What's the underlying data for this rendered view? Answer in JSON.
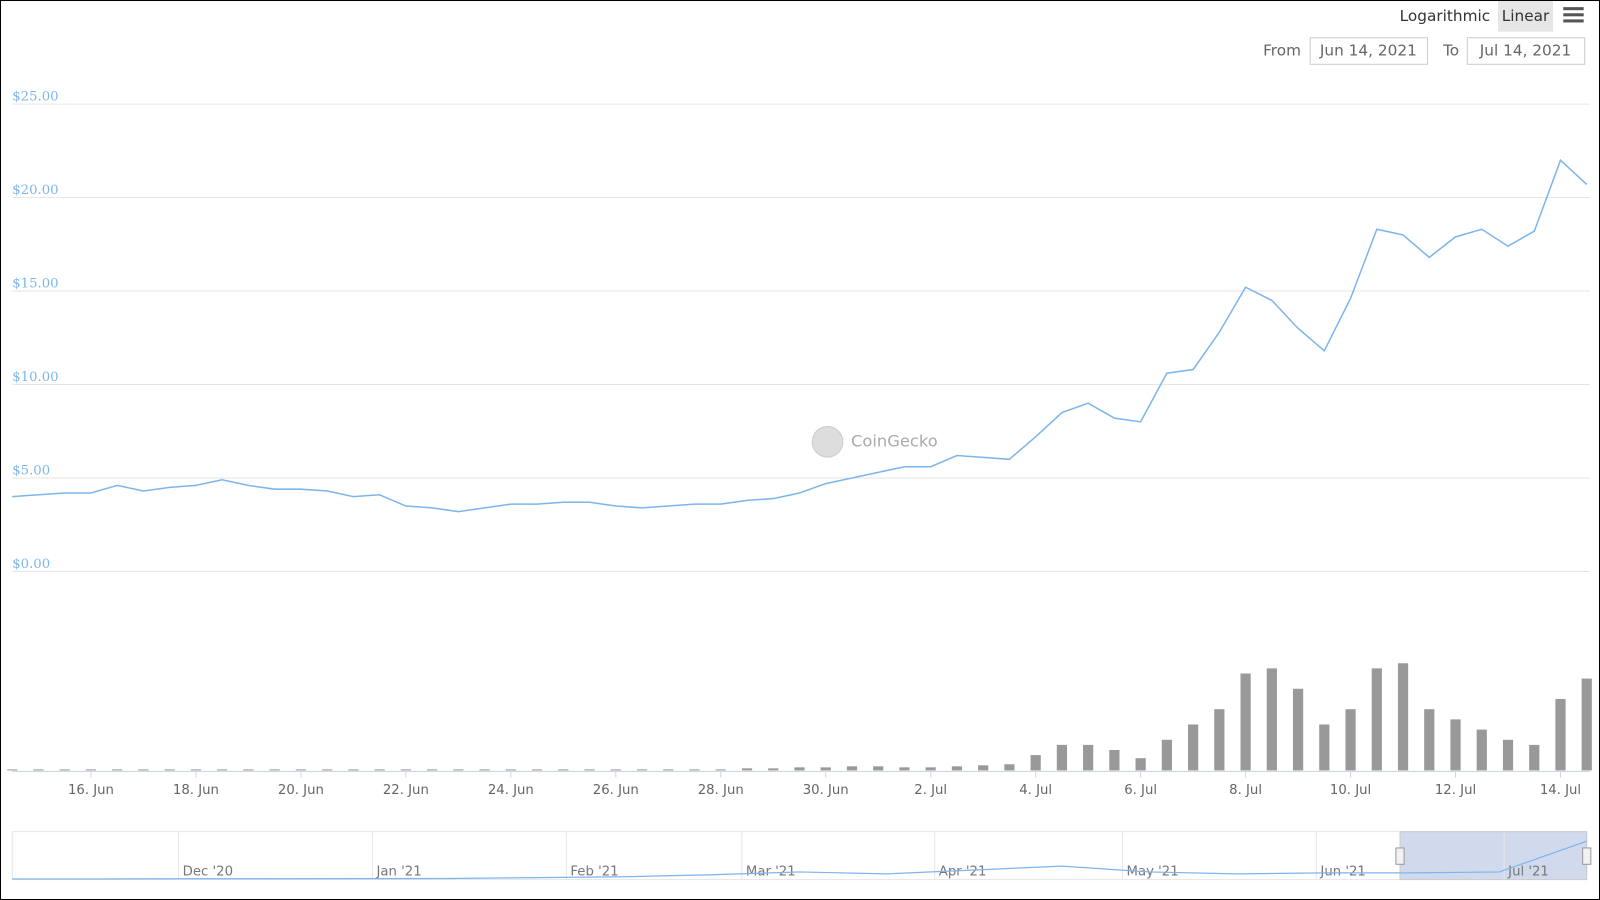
{
  "ui": {
    "log_button": "Logarithmic",
    "linear_button": "Linear",
    "from_label": "From",
    "from_date": "Jun 14, 2021",
    "to_label": "To",
    "to_date": "Jul 14, 2021",
    "watermark": "CoinGecko"
  },
  "chart_data": {
    "type": "line",
    "color": "#7cb5ec",
    "grid": true,
    "categories": [
      null,
      null,
      null,
      "16. Jun",
      null,
      null,
      null,
      "18. Jun",
      null,
      null,
      null,
      "20. Jun",
      null,
      null,
      null,
      "22. Jun",
      null,
      null,
      null,
      "24. Jun",
      null,
      null,
      null,
      "26. Jun",
      null,
      null,
      null,
      "28. Jun",
      null,
      null,
      null,
      "30. Jun",
      null,
      null,
      null,
      "2. Jul",
      null,
      null,
      null,
      "4. Jul",
      null,
      null,
      null,
      "6. Jul",
      null,
      null,
      null,
      "8. Jul",
      null,
      null,
      null,
      "10. Jul",
      null,
      null,
      null,
      "12. Jul",
      null,
      null,
      null,
      "14. Jul",
      null
    ],
    "values": [
      4.0,
      4.1,
      4.2,
      4.2,
      4.6,
      4.3,
      4.5,
      4.6,
      4.9,
      4.6,
      4.4,
      4.4,
      4.3,
      4.0,
      4.1,
      3.5,
      3.4,
      3.2,
      3.4,
      3.6,
      3.6,
      3.7,
      3.7,
      3.5,
      3.4,
      3.5,
      3.6,
      3.6,
      3.8,
      3.9,
      4.2,
      4.7,
      5.0,
      5.3,
      5.6,
      5.6,
      6.2,
      6.1,
      6.0,
      7.2,
      8.5,
      9.0,
      8.2,
      8.0,
      10.6,
      10.8,
      12.8,
      15.2,
      14.5,
      13.0,
      11.8,
      14.6,
      18.3,
      18.0,
      16.8,
      17.9,
      18.3,
      17.4,
      18.2,
      22.0,
      20.7
    ],
    "volume": [
      1,
      1,
      1,
      1,
      1,
      1,
      1,
      1,
      1,
      1,
      1,
      1,
      1,
      1,
      1,
      1,
      1,
      1,
      1,
      1,
      1,
      1,
      1,
      1,
      1,
      1,
      1,
      1,
      2,
      2,
      3,
      3,
      4,
      4,
      3,
      3,
      4,
      5,
      6,
      15,
      25,
      25,
      20,
      12,
      30,
      45,
      60,
      95,
      100,
      80,
      45,
      60,
      100,
      105,
      60,
      50,
      40,
      30,
      25,
      70,
      90
    ],
    "volume_color": "#999999",
    "vlim": [
      0,
      120
    ],
    "ylim": [
      0,
      25
    ],
    "yticks": [
      {
        "value": 0,
        "label": "$0.00"
      },
      {
        "value": 5,
        "label": "$5.00"
      },
      {
        "value": 10,
        "label": "$10.00"
      },
      {
        "value": 15,
        "label": "$15.00"
      },
      {
        "value": 20,
        "label": "$20.00"
      },
      {
        "value": 25,
        "label": "$25.00"
      }
    ],
    "navigator": {
      "labels": [
        null,
        "Dec '20",
        "Jan '21",
        "Feb '21",
        "Mar '21",
        "Apr '21",
        "May '21",
        "Jun '21",
        "Jul '21"
      ],
      "values": [
        0.3,
        0.3,
        0.4,
        0.4,
        0.5,
        0.6,
        1.0,
        1.5,
        2.5,
        4.0,
        3.0,
        5.0,
        7.0,
        4.0,
        3.0,
        3.5,
        3.5,
        4.0,
        20.0
      ],
      "ylim": [
        0,
        25
      ]
    }
  }
}
